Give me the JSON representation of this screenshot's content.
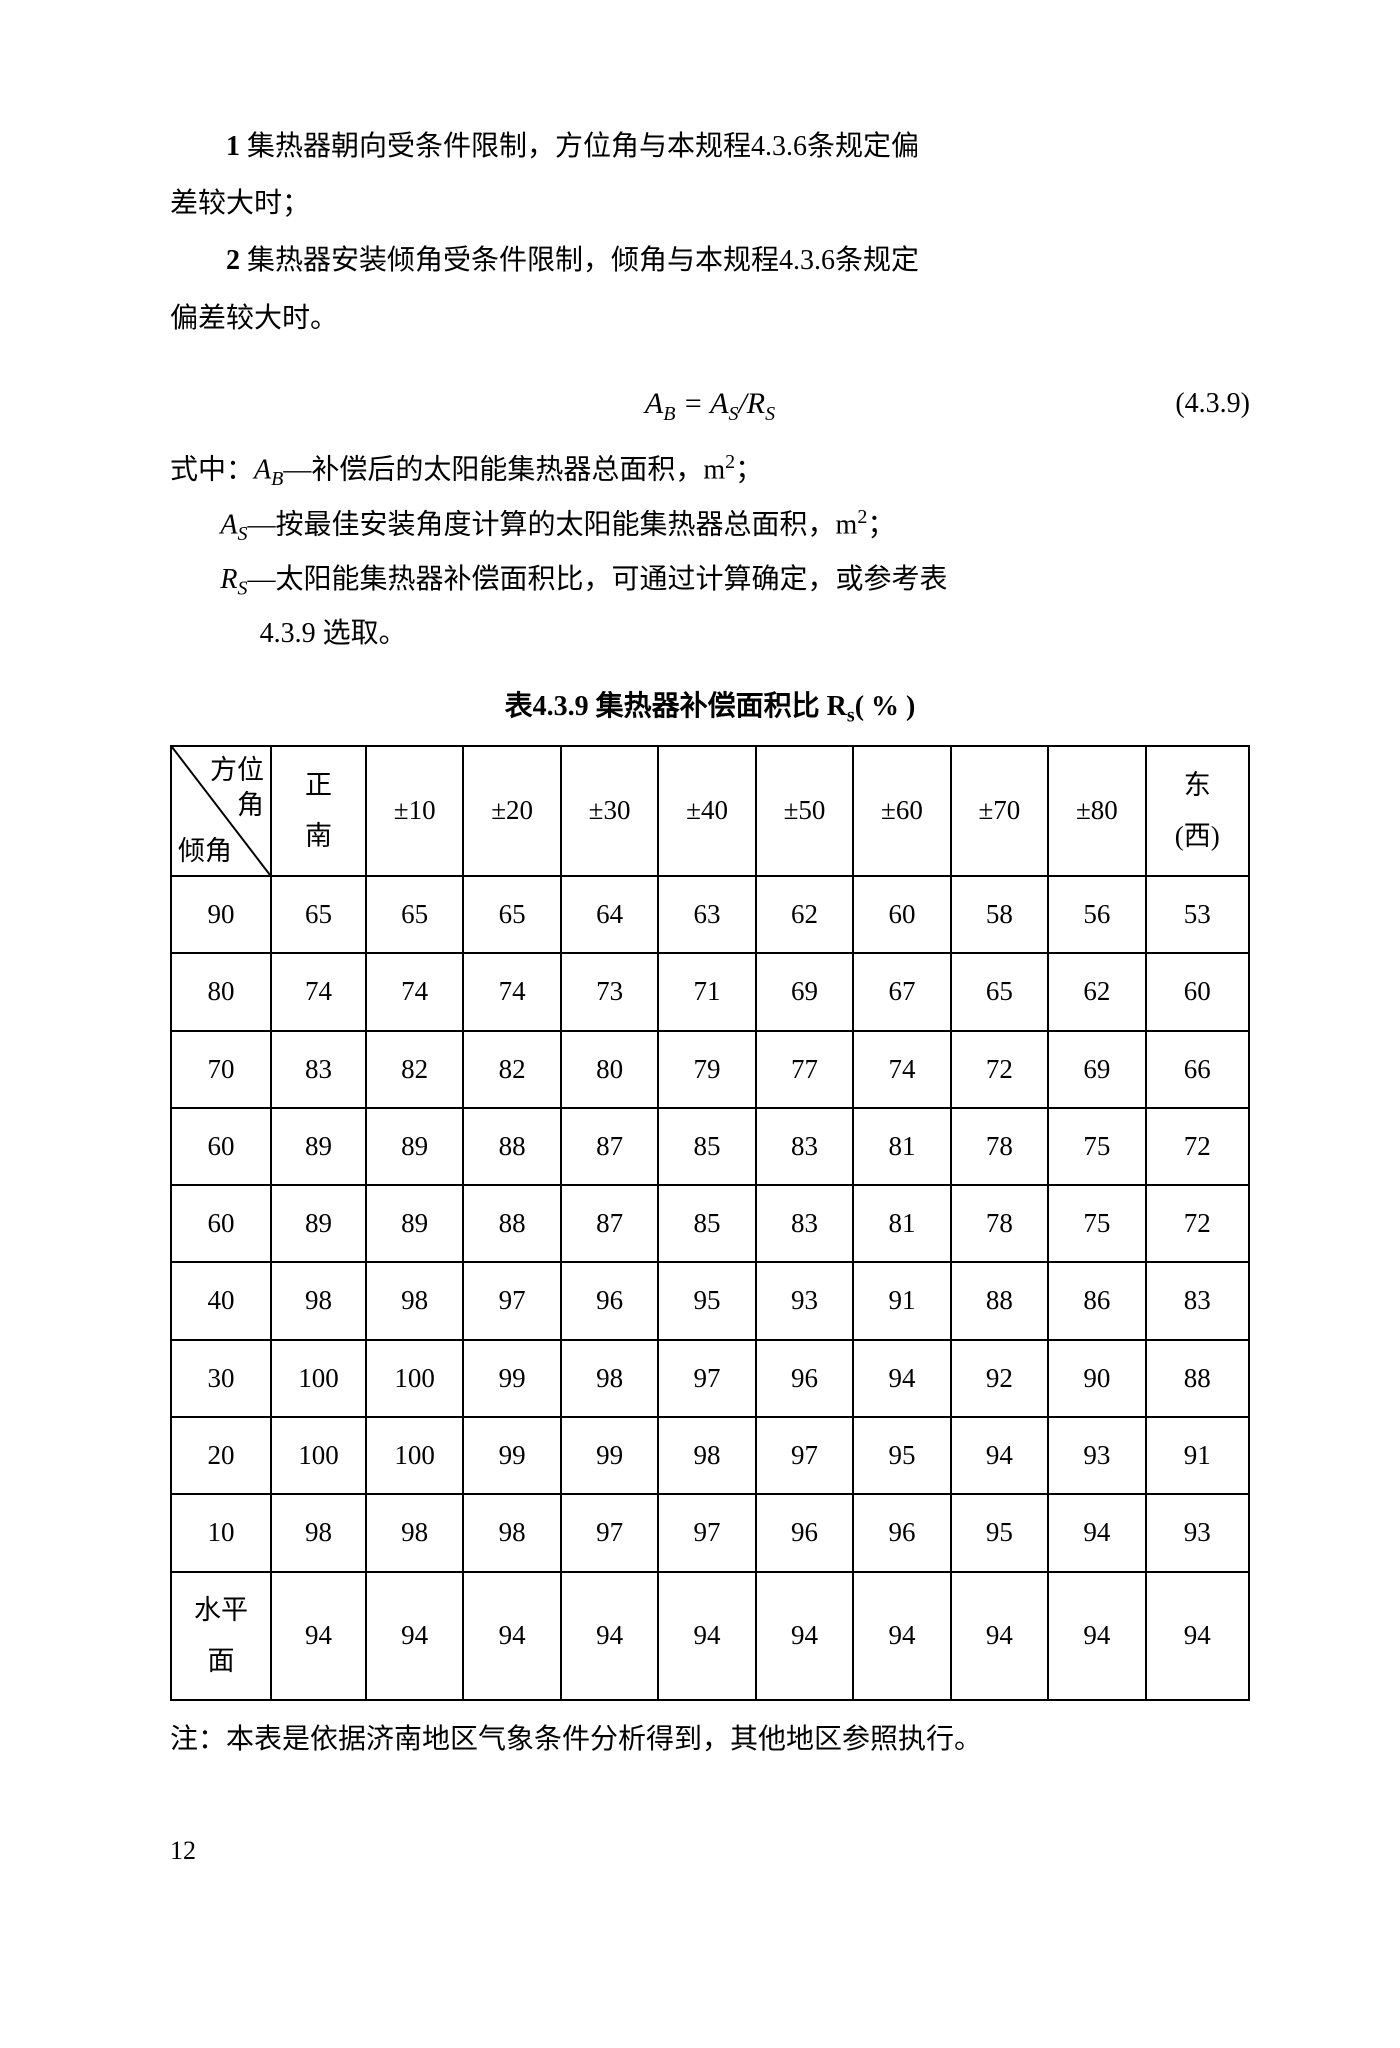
{
  "item1_num": "1",
  "item1_text": " 集热器朝向受条件限制，方位角与本规程4.3.6条规定偏",
  "item1_cont": "差较大时；",
  "item2_num": "2",
  "item2_text": " 集热器安装倾角受条件限制，倾角与本规程4.3.6条规定",
  "item2_cont": "偏差较大时。",
  "eq_lhs_sym": "A",
  "eq_lhs_sub": "B",
  "eq_eq": " = ",
  "eq_num_sym": "A",
  "eq_num_sub": "S",
  "eq_slash": "/",
  "eq_den_sym": "R",
  "eq_den_sub": "S",
  "eq_number": "(4.3.9)",
  "where_prefix": "式中：",
  "where_AB_sym": "A",
  "where_AB_sub": "B",
  "where_AB_dash": "—",
  "where_AB_text": "补偿后的太阳能集热器总面积，m",
  "where_unit_sup": "2",
  "where_semi": "；",
  "where_AS_sym": "A",
  "where_AS_sub": "S",
  "where_AS_dash": "—",
  "where_AS_text": "按最佳安装角度计算的太阳能集热器总面积，m",
  "where_RS_sym": "R",
  "where_RS_sub": "S",
  "where_RS_dash": "—",
  "where_RS_text": "太阳能集热器补偿面积比，可通过计算确定，或参考表",
  "where_RS_cont": "4.3.9 选取。",
  "table_title_pre": "表4.3.9 集热器补偿面积比 R",
  "table_title_sub": "s",
  "table_title_post": "( % )",
  "diag_top_l1": "方位",
  "diag_top_l2": "角",
  "diag_bottom": "倾角",
  "headers": [
    "正南",
    "±10",
    "±20",
    "±30",
    "±40",
    "±50",
    "±60",
    "±70",
    "±80",
    "东(西)"
  ],
  "header_10_l1": "东",
  "header_10_l2": "(西)",
  "header_1_l1": "正",
  "header_1_l2": "南",
  "rows": [
    {
      "label": "90",
      "cells": [
        "65",
        "65",
        "65",
        "64",
        "63",
        "62",
        "60",
        "58",
        "56",
        "53"
      ]
    },
    {
      "label": "80",
      "cells": [
        "74",
        "74",
        "74",
        "73",
        "71",
        "69",
        "67",
        "65",
        "62",
        "60"
      ]
    },
    {
      "label": "70",
      "cells": [
        "83",
        "82",
        "82",
        "80",
        "79",
        "77",
        "74",
        "72",
        "69",
        "66"
      ]
    },
    {
      "label": "60",
      "cells": [
        "89",
        "89",
        "88",
        "87",
        "85",
        "83",
        "81",
        "78",
        "75",
        "72"
      ]
    },
    {
      "label": "60",
      "cells": [
        "89",
        "89",
        "88",
        "87",
        "85",
        "83",
        "81",
        "78",
        "75",
        "72"
      ]
    },
    {
      "label": "40",
      "cells": [
        "98",
        "98",
        "97",
        "96",
        "95",
        "93",
        "91",
        "88",
        "86",
        "83"
      ]
    },
    {
      "label": "30",
      "cells": [
        "100",
        "100",
        "99",
        "98",
        "97",
        "96",
        "94",
        "92",
        "90",
        "88"
      ]
    },
    {
      "label": "20",
      "cells": [
        "100",
        "100",
        "99",
        "99",
        "98",
        "97",
        "95",
        "94",
        "93",
        "91"
      ]
    },
    {
      "label": "10",
      "cells": [
        "98",
        "98",
        "98",
        "97",
        "97",
        "96",
        "96",
        "95",
        "94",
        "93"
      ]
    },
    {
      "label": "水平面",
      "cells": [
        "94",
        "94",
        "94",
        "94",
        "94",
        "94",
        "94",
        "94",
        "94",
        "94"
      ]
    }
  ],
  "last_row_l1": "水平",
  "last_row_l2": "面",
  "note_text": "注：本表是依据济南地区气象条件分析得到，其他地区参照执行。",
  "page_number": "12"
}
